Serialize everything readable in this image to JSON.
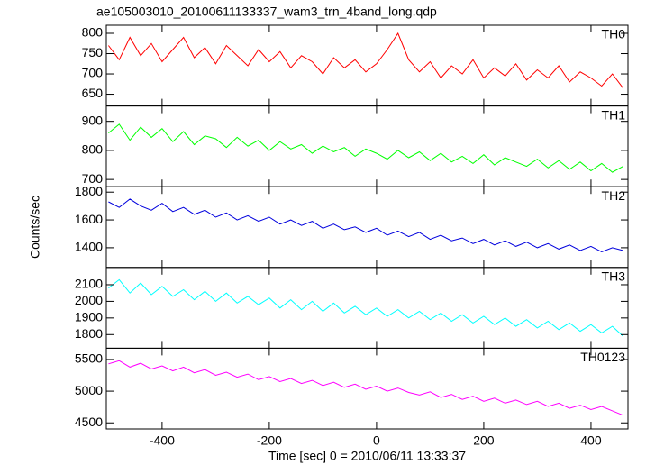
{
  "chart_data": [
    {
      "type": "line",
      "title": "ae105003010_20100611133337_wam3_trn_4band_long.qdp",
      "x": [
        -500,
        -480,
        -460,
        -440,
        -420,
        -400,
        -380,
        -360,
        -340,
        -320,
        -300,
        -280,
        -260,
        -240,
        -220,
        -200,
        -180,
        -160,
        -140,
        -120,
        -100,
        -80,
        -60,
        -40,
        -20,
        0,
        20,
        40,
        60,
        80,
        100,
        120,
        140,
        160,
        180,
        200,
        220,
        240,
        260,
        280,
        300,
        320,
        340,
        360,
        380,
        400,
        420,
        440,
        460
      ],
      "series": [
        {
          "name": "TH0",
          "color": "#ff0000",
          "values": [
            770,
            735,
            790,
            745,
            775,
            730,
            760,
            790,
            740,
            765,
            725,
            770,
            745,
            720,
            760,
            730,
            755,
            715,
            745,
            730,
            700,
            740,
            715,
            735,
            705,
            725,
            760,
            800,
            735,
            705,
            730,
            690,
            720,
            700,
            735,
            690,
            715,
            695,
            725,
            685,
            710,
            690,
            720,
            680,
            705,
            690,
            670,
            700,
            665
          ]
        }
      ],
      "xlim": [
        -504,
        469
      ],
      "ylim": [
        621,
        820
      ],
      "yticks": [
        650,
        700,
        750,
        800
      ]
    },
    {
      "type": "line",
      "x": [
        -500,
        -480,
        -460,
        -440,
        -420,
        -400,
        -380,
        -360,
        -340,
        -320,
        -300,
        -280,
        -260,
        -240,
        -220,
        -200,
        -180,
        -160,
        -140,
        -120,
        -100,
        -80,
        -60,
        -40,
        -20,
        0,
        20,
        40,
        60,
        80,
        100,
        120,
        140,
        160,
        180,
        200,
        220,
        240,
        260,
        280,
        300,
        320,
        340,
        360,
        380,
        400,
        420,
        440,
        460
      ],
      "series": [
        {
          "name": "TH1",
          "color": "#00ff00",
          "values": [
            860,
            890,
            835,
            880,
            845,
            875,
            830,
            865,
            820,
            850,
            840,
            810,
            845,
            815,
            835,
            800,
            830,
            805,
            820,
            790,
            815,
            795,
            810,
            780,
            805,
            790,
            770,
            800,
            775,
            795,
            765,
            790,
            760,
            780,
            755,
            785,
            750,
            775,
            760,
            745,
            770,
            740,
            765,
            735,
            760,
            730,
            755,
            725,
            745
          ]
        }
      ],
      "xlim": [
        -504,
        469
      ],
      "ylim": [
        675,
        953
      ],
      "yticks": [
        700,
        800,
        900
      ]
    },
    {
      "type": "line",
      "y_label": "Counts/sec",
      "x": [
        -500,
        -480,
        -460,
        -440,
        -420,
        -400,
        -380,
        -360,
        -340,
        -320,
        -300,
        -280,
        -260,
        -240,
        -220,
        -200,
        -180,
        -160,
        -140,
        -120,
        -100,
        -80,
        -60,
        -40,
        -20,
        0,
        20,
        40,
        60,
        80,
        100,
        120,
        140,
        160,
        180,
        200,
        220,
        240,
        260,
        280,
        300,
        320,
        340,
        360,
        380,
        400,
        420,
        440,
        460
      ],
      "series": [
        {
          "name": "TH2",
          "color": "#0000dd",
          "values": [
            1730,
            1690,
            1750,
            1700,
            1670,
            1720,
            1660,
            1690,
            1640,
            1670,
            1620,
            1650,
            1600,
            1630,
            1590,
            1620,
            1570,
            1600,
            1560,
            1590,
            1540,
            1570,
            1530,
            1550,
            1510,
            1540,
            1490,
            1520,
            1480,
            1510,
            1460,
            1490,
            1450,
            1470,
            1430,
            1460,
            1420,
            1450,
            1410,
            1440,
            1400,
            1430,
            1390,
            1420,
            1380,
            1410,
            1370,
            1400,
            1380
          ]
        }
      ],
      "xlim": [
        -504,
        469
      ],
      "ylim": [
        1258,
        1839
      ],
      "yticks": [
        1400,
        1600,
        1800
      ]
    },
    {
      "type": "line",
      "x": [
        -500,
        -480,
        -460,
        -440,
        -420,
        -400,
        -380,
        -360,
        -340,
        -320,
        -300,
        -280,
        -260,
        -240,
        -220,
        -200,
        -180,
        -160,
        -140,
        -120,
        -100,
        -80,
        -60,
        -40,
        -20,
        0,
        20,
        40,
        60,
        80,
        100,
        120,
        140,
        160,
        180,
        200,
        220,
        240,
        260,
        280,
        300,
        320,
        340,
        360,
        380,
        400,
        420,
        440,
        460
      ],
      "series": [
        {
          "name": "TH3",
          "color": "#00ffff",
          "values": [
            2080,
            2130,
            2050,
            2110,
            2040,
            2090,
            2030,
            2070,
            2010,
            2060,
            2000,
            2050,
            1990,
            2030,
            1980,
            2020,
            1960,
            2010,
            1950,
            2000,
            1940,
            1990,
            1930,
            1970,
            1920,
            1960,
            1910,
            1950,
            1900,
            1940,
            1890,
            1930,
            1880,
            1920,
            1870,
            1910,
            1860,
            1900,
            1850,
            1890,
            1840,
            1880,
            1830,
            1870,
            1820,
            1860,
            1810,
            1850,
            1790
          ]
        }
      ],
      "xlim": [
        -504,
        469
      ],
      "ylim": [
        1718,
        2204
      ],
      "yticks": [
        1800,
        1900,
        2000,
        2100
      ]
    },
    {
      "type": "line",
      "x_label": "Time [sec] 0 = 2010/06/11 13:33:37",
      "x": [
        -500,
        -480,
        -460,
        -440,
        -420,
        -400,
        -380,
        -360,
        -340,
        -320,
        -300,
        -280,
        -260,
        -240,
        -220,
        -200,
        -180,
        -160,
        -140,
        -120,
        -100,
        -80,
        -60,
        -40,
        -20,
        0,
        20,
        40,
        60,
        80,
        100,
        120,
        140,
        160,
        180,
        200,
        220,
        240,
        260,
        280,
        300,
        320,
        340,
        360,
        380,
        400,
        420,
        440,
        460
      ],
      "series": [
        {
          "name": "TH0123",
          "color": "#ff00ff",
          "values": [
            5430,
            5480,
            5380,
            5440,
            5350,
            5400,
            5320,
            5380,
            5290,
            5340,
            5250,
            5300,
            5220,
            5270,
            5180,
            5230,
            5150,
            5200,
            5120,
            5170,
            5090,
            5140,
            5060,
            5110,
            5030,
            5080,
            5000,
            5050,
            4980,
            4940,
            4990,
            4900,
            4950,
            4870,
            4920,
            4840,
            4890,
            4810,
            4860,
            4790,
            4840,
            4760,
            4810,
            4730,
            4780,
            4710,
            4760,
            4690,
            4620
          ]
        }
      ],
      "xlim": [
        -504,
        469
      ],
      "xticks": [
        -400,
        -200,
        0,
        200,
        400
      ],
      "ylim": [
        4404,
        5678
      ],
      "yticks": [
        4500,
        5000,
        5500
      ]
    }
  ]
}
